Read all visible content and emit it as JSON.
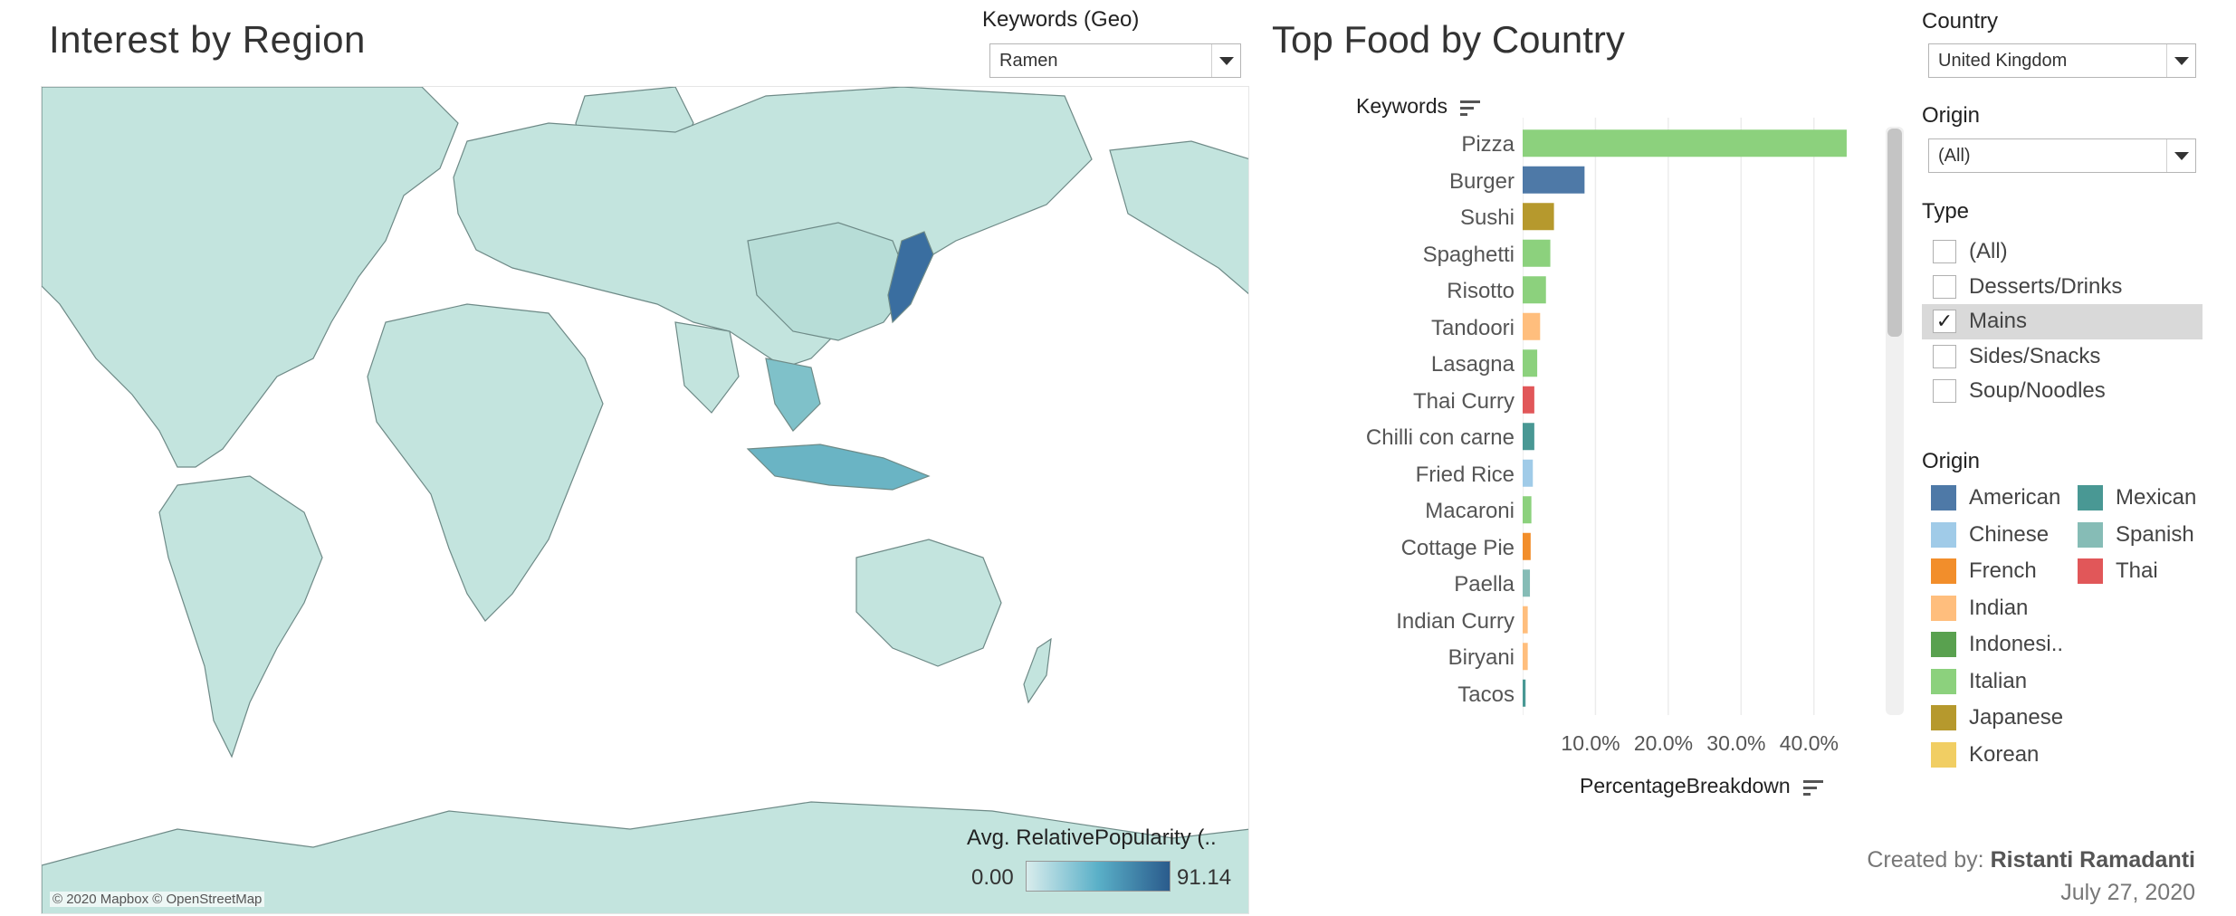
{
  "left": {
    "title": "Interest by Region",
    "keyword_filter": {
      "label": "Keywords (Geo)",
      "value": "Ramen"
    },
    "map_credit": "© 2020 Mapbox © OpenStreetMap",
    "legend": {
      "title": "Avg. RelativePopularity (..",
      "min": "0.00",
      "max": "91.14"
    }
  },
  "right": {
    "title": "Top Food by Country",
    "y_axis_title": "Keywords",
    "x_axis_title": "PercentageBreakdown",
    "country_filter": {
      "label": "Country",
      "value": "United Kingdom"
    },
    "origin_filter": {
      "label": "Origin",
      "value": "(All)"
    },
    "type_filter": {
      "label": "Type",
      "items": [
        {
          "label": "(All)",
          "checked": false
        },
        {
          "label": "Desserts/Drinks",
          "checked": false
        },
        {
          "label": "Mains",
          "checked": true
        },
        {
          "label": "Sides/Snacks",
          "checked": false
        },
        {
          "label": "Soup/Noodles",
          "checked": false
        }
      ]
    },
    "origin_legend": {
      "title": "Origin",
      "col1": [
        {
          "label": "American",
          "color": "#4e79a7"
        },
        {
          "label": "Chinese",
          "color": "#a0cbe8"
        },
        {
          "label": "French",
          "color": "#f28e2b"
        },
        {
          "label": "Indian",
          "color": "#ffbe7d"
        },
        {
          "label": "Indonesi..",
          "color": "#59a14f"
        },
        {
          "label": "Italian",
          "color": "#8cd17d"
        },
        {
          "label": "Japanese",
          "color": "#b6992d"
        },
        {
          "label": "Korean",
          "color": "#f1ce63"
        }
      ],
      "col2": [
        {
          "label": "Mexican",
          "color": "#499894"
        },
        {
          "label": "Spanish",
          "color": "#86bcb6"
        },
        {
          "label": "Thai",
          "color": "#e15759"
        }
      ]
    },
    "credit": {
      "prefix": "Created by:",
      "author": "Ristanti Ramadanti",
      "date": "July 27, 2020"
    }
  },
  "chart_data": {
    "type": "bar",
    "orientation": "horizontal",
    "categories": [
      "Pizza",
      "Burger",
      "Sushi",
      "Spaghetti",
      "Risotto",
      "Tandoori",
      "Lasagna",
      "Thai Curry",
      "Chilli con carne",
      "Fried Rice",
      "Macaroni",
      "Cottage Pie",
      "Paella",
      "Indian Curry",
      "Biryani",
      "Tacos"
    ],
    "values": [
      44.5,
      8.5,
      4.3,
      3.8,
      3.2,
      2.4,
      2.0,
      1.6,
      1.6,
      1.4,
      1.2,
      1.1,
      1.0,
      0.7,
      0.7,
      0.4
    ],
    "origin": [
      "Italian",
      "American",
      "Japanese",
      "Italian",
      "Italian",
      "Indian",
      "Italian",
      "Thai",
      "Mexican",
      "Chinese",
      "Italian",
      "French",
      "Spanish",
      "Indian",
      "Indian",
      "Mexican"
    ],
    "xlabel": "PercentageBreakdown",
    "ylabel": "Keywords",
    "xticks": [
      "10.0%",
      "20.0%",
      "30.0%",
      "40.0%"
    ],
    "xlim": [
      0,
      46
    ],
    "grid": true
  }
}
